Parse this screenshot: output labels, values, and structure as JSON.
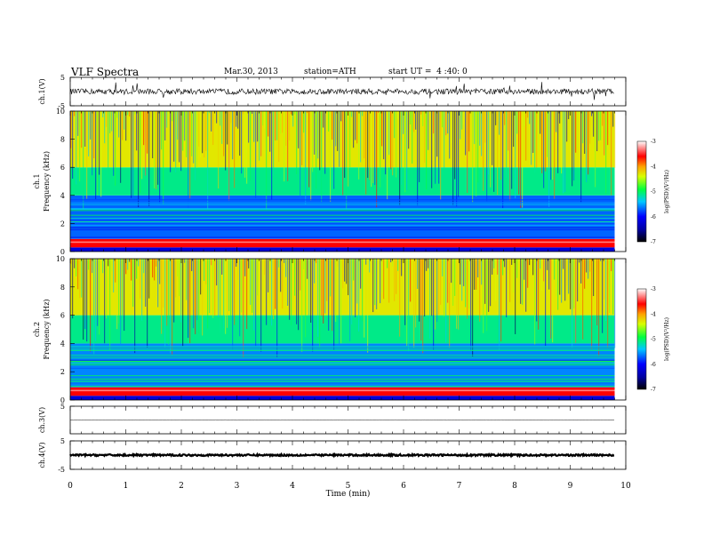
{
  "header": {
    "title": "VLF Spectra",
    "date": "Mar.30, 2013",
    "station": "station=ATH",
    "start": "start UT =  4 :40: 0"
  },
  "chart_data": [
    {
      "type": "line",
      "panel": "ch1-waveform",
      "ylabel": "ch.1(V)",
      "ylim": [
        -5,
        5
      ],
      "yticks": [
        "5",
        "-5"
      ],
      "description_values": {
        "baseline": 0.0,
        "typical_amplitude": 1.0,
        "max_spike": 4.0
      }
    },
    {
      "type": "heatmap",
      "panel": "ch1-spectrogram",
      "ylabel": [
        "ch.1",
        "Frequency (kHz)"
      ],
      "ylim": [
        0,
        10
      ],
      "yticks": [
        "0",
        "2",
        "4",
        "6",
        "8",
        "10"
      ],
      "colorbar": {
        "label": "log(PSD)(V²/Hz)",
        "range": [
          -7,
          -3
        ],
        "ticks": [
          "-3",
          "-4",
          "-5",
          "-6",
          "-7"
        ]
      },
      "bands_khz": [
        {
          "from": 0.0,
          "to": 0.3,
          "log_psd": -6.2
        },
        {
          "from": 0.3,
          "to": 0.9,
          "log_psd": -3.6
        },
        {
          "from": 0.9,
          "to": 4.0,
          "log_psd": -5.7
        },
        {
          "from": 4.0,
          "to": 6.0,
          "log_psd": -5.1
        },
        {
          "from": 6.0,
          "to": 10.0,
          "log_psd": -4.3
        }
      ]
    },
    {
      "type": "heatmap",
      "panel": "ch2-spectrogram",
      "ylabel": [
        "ch.2",
        "Frequency (kHz)"
      ],
      "ylim": [
        0,
        10
      ],
      "yticks": [
        "0",
        "2",
        "4",
        "6",
        "8",
        "10"
      ],
      "colorbar": {
        "label": "log(PSD)(V²/Hz)",
        "range": [
          -7,
          -3
        ],
        "ticks": [
          "-3",
          "-4",
          "-5",
          "-6",
          "-7"
        ]
      },
      "bands_khz": [
        {
          "from": 0.0,
          "to": 0.3,
          "log_psd": -6.2
        },
        {
          "from": 0.3,
          "to": 0.9,
          "log_psd": -3.6
        },
        {
          "from": 0.9,
          "to": 4.0,
          "log_psd": -5.6
        },
        {
          "from": 4.0,
          "to": 6.0,
          "log_psd": -5.1
        },
        {
          "from": 6.0,
          "to": 10.0,
          "log_psd": -4.3
        }
      ]
    },
    {
      "type": "line",
      "panel": "ch3-waveform",
      "ylabel": "ch.3(V)",
      "ylim": [
        -5,
        5
      ],
      "yticks": [
        "5"
      ],
      "description_values": {
        "baseline": 0.0,
        "typical_amplitude": 0.1
      }
    },
    {
      "type": "line",
      "panel": "ch4-waveform",
      "ylabel": "ch.4(V)",
      "ylim": [
        -5,
        5
      ],
      "yticks": [
        "5",
        "-5"
      ],
      "description_values": {
        "baseline": 0.0,
        "typical_amplitude": 0.3
      }
    }
  ],
  "x_axis": {
    "label": "Time (min)",
    "range": [
      0,
      10
    ],
    "data_end": 9.8,
    "ticks": [
      "0",
      "1",
      "2",
      "3",
      "4",
      "5",
      "6",
      "7",
      "8",
      "9",
      "10"
    ]
  }
}
